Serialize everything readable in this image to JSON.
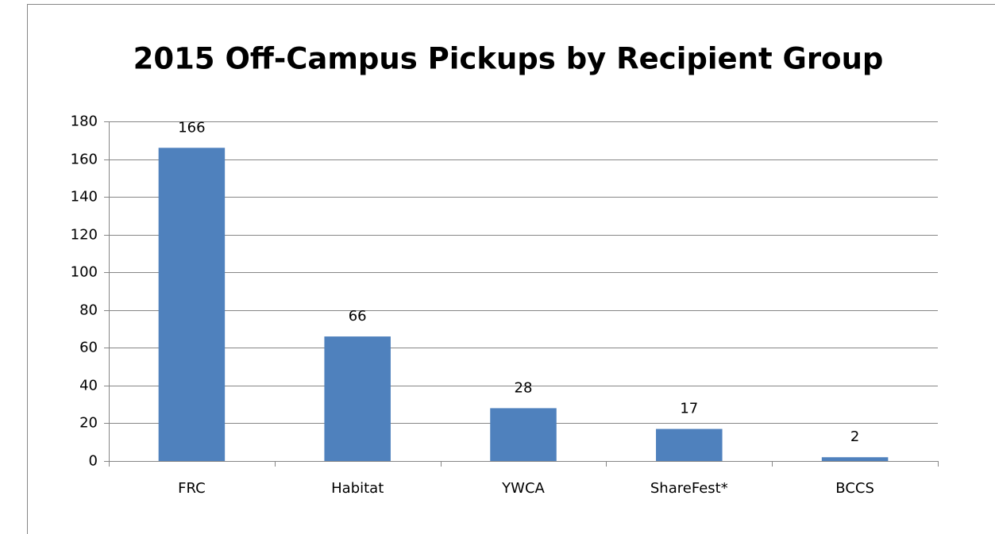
{
  "chart_data": {
    "type": "bar",
    "title": "2015 Off-Campus Pickups by Recipient Group",
    "categories": [
      "FRC",
      "Habitat",
      "YWCA",
      "ShareFest*",
      "BCCS"
    ],
    "values": [
      166,
      66,
      28,
      17,
      2
    ],
    "color": "#4f81bd",
    "ylim": [
      0,
      180
    ],
    "yticks": [
      0,
      20,
      40,
      60,
      80,
      100,
      120,
      140,
      160,
      180
    ],
    "grid": true
  }
}
